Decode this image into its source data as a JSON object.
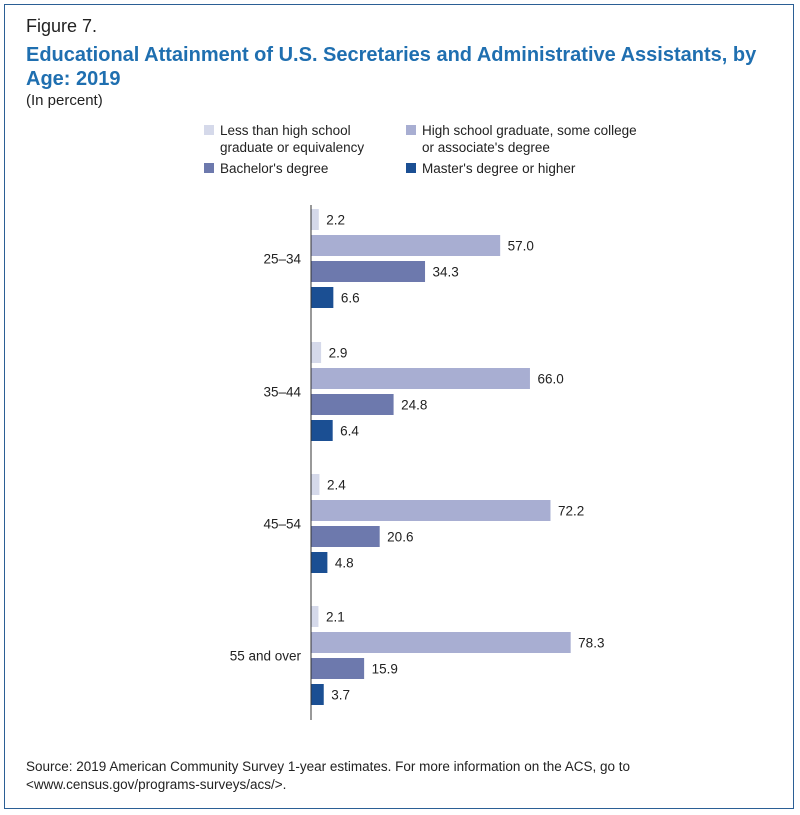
{
  "figure_label": "Figure 7.",
  "title": "Educational Attainment of U.S. Secretaries and Administrative Assistants, by Age: 2019",
  "subtitle": "(In percent)",
  "source": "Source: 2019 American Community Survey 1-year estimates.  For more information on the ACS, go to <www.census.gov/programs-surveys/acs/>.",
  "colors": {
    "less_than_hs": "#d5d9ea",
    "hs_some_college": "#a8aed2",
    "bachelors": "#6d79ad",
    "masters": "#1b4f93",
    "frame": "#2b5f95",
    "title": "#1f6fb0"
  },
  "chart_data": {
    "type": "bar",
    "orientation": "horizontal",
    "title": "Educational Attainment of U.S. Secretaries and Administrative Assistants, by Age: 2019",
    "subtitle": "(In percent)",
    "unit": "percent",
    "categories": [
      "25–34",
      "35–44",
      "45–54",
      "55 and over"
    ],
    "series": [
      {
        "name": "Less than high school graduate or equivalency",
        "color": "#d5d9ea",
        "values": [
          2.2,
          2.9,
          2.4,
          2.1
        ]
      },
      {
        "name": "High school graduate, some college or associate's degree",
        "color": "#a8aed2",
        "values": [
          57.0,
          66.0,
          72.2,
          78.3
        ]
      },
      {
        "name": "Bachelor's degree",
        "color": "#6d79ad",
        "values": [
          34.3,
          24.8,
          20.6,
          15.9
        ]
      },
      {
        "name": "Master's degree or higher",
        "color": "#1b4f93",
        "values": [
          6.6,
          6.4,
          4.8,
          3.7
        ]
      }
    ],
    "xlim": [
      0,
      100
    ],
    "grid": false,
    "legend_position": "top",
    "data_labels": true
  }
}
